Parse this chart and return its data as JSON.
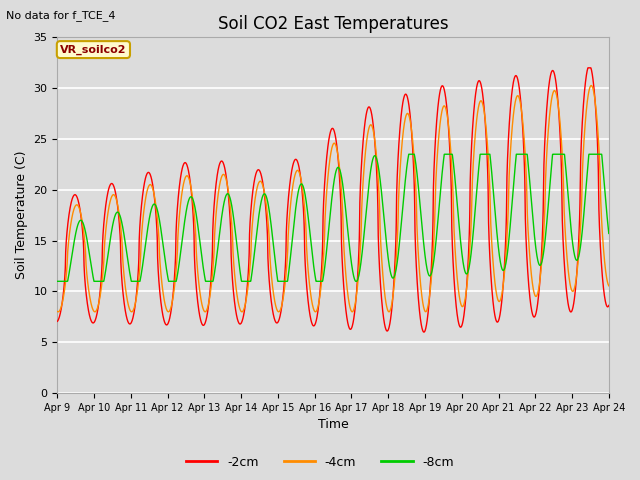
{
  "title": "Soil CO2 East Temperatures",
  "no_data_text": "No data for f_TCE_4",
  "ylabel": "Soil Temperature (C)",
  "xlabel": "Time",
  "ylim": [
    0,
    35
  ],
  "yticks": [
    0,
    5,
    10,
    15,
    20,
    25,
    30,
    35
  ],
  "x_tick_labels": [
    "Apr 9",
    "Apr 10",
    "Apr 11",
    "Apr 12",
    "Apr 13",
    "Apr 14",
    "Apr 15",
    "Apr 16",
    "Apr 17",
    "Apr 18",
    "Apr 19",
    "Apr 20",
    "Apr 21",
    "Apr 22",
    "Apr 23",
    "Apr 24"
  ],
  "color_2cm": "#ff0000",
  "color_4cm": "#ff8c00",
  "color_8cm": "#00cc00",
  "legend_label_2cm": "-2cm",
  "legend_label_4cm": "-4cm",
  "legend_label_8cm": "-8cm",
  "box_label": "VR_soilco2",
  "background_color": "#dcdcdc",
  "title_fontsize": 12,
  "label_fontsize": 9,
  "tick_fontsize": 8
}
